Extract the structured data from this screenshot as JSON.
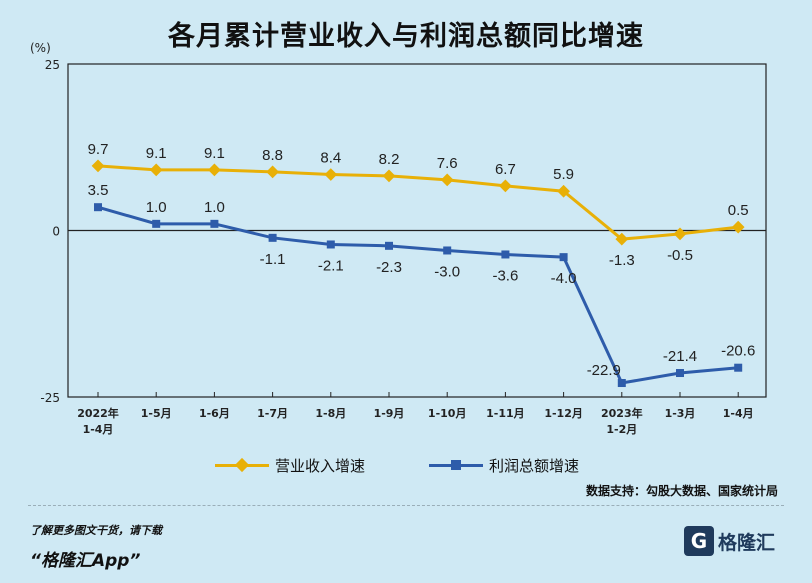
{
  "title": "各月累计营业收入与利润总额同比增速",
  "chart_data": {
    "type": "line",
    "unit_label": "(%)",
    "categories": [
      "2022年\n1-4月",
      "1-5月",
      "1-6月",
      "1-7月",
      "1-8月",
      "1-9月",
      "1-10月",
      "1-11月",
      "1-12月",
      "2023年\n1-2月",
      "1-3月",
      "1-4月"
    ],
    "ylim": [
      -25,
      25
    ],
    "yticks": [
      25,
      0,
      -25
    ],
    "series": [
      {
        "name": "营业收入增速",
        "color": "#e8b007",
        "values": [
          9.7,
          9.1,
          9.1,
          8.8,
          8.4,
          8.2,
          7.6,
          6.7,
          5.9,
          -1.3,
          -0.5,
          0.5
        ],
        "labels": [
          "9.7",
          "9.1",
          "9.1",
          "8.8",
          "8.4",
          "8.2",
          "7.6",
          "6.7",
          "5.9",
          "-1.3",
          "-0.5",
          "0.5"
        ]
      },
      {
        "name": "利润总额增速",
        "color": "#2e5caa",
        "values": [
          3.5,
          1.0,
          1.0,
          -1.1,
          -2.1,
          -2.3,
          -3.0,
          -3.6,
          -4.0,
          -22.9,
          -21.4,
          -20.6
        ],
        "labels": [
          "3.5",
          "1.0",
          "1.0",
          "-1.1",
          "-2.1",
          "-2.3",
          "-3.0",
          "-3.6",
          "-4.0",
          "-22.9",
          "-21.4",
          "-20.6"
        ]
      }
    ],
    "legend_position": "bottom",
    "grid": false
  },
  "source": "数据支持：勾股大数据、国家统计局",
  "footer": {
    "promo_line": "了解更多图文干货，请下载",
    "promo_app": "“格隆汇App”",
    "logo_mark": "G",
    "logo_text": "格隆汇"
  },
  "colors": {
    "background": "#cfe9f4"
  }
}
